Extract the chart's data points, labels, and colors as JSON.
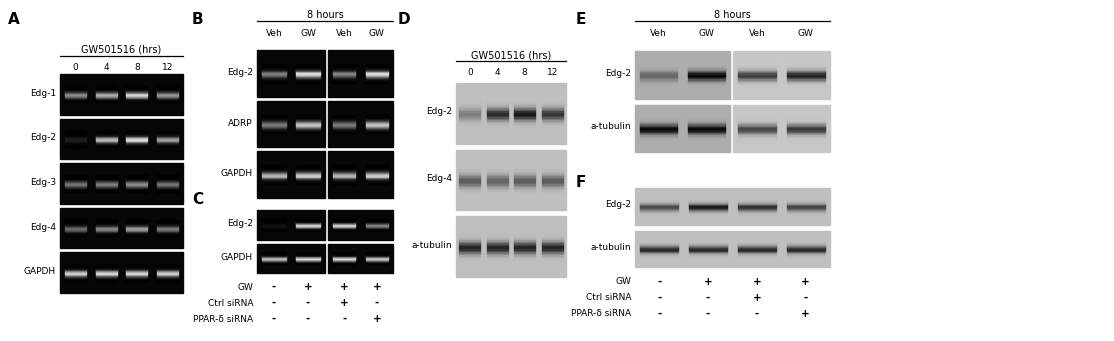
{
  "bg": "#ffffff",
  "panel_A": {
    "label": "A",
    "title": "GW501516 (hrs)",
    "lanes": [
      "0",
      "4",
      "8",
      "12"
    ],
    "rows": [
      "Edg-1",
      "Edg-2",
      "Edg-3",
      "Edg-4",
      "GAPDH"
    ],
    "bands": {
      "Edg-1": [
        0.55,
        0.7,
        0.85,
        0.6
      ],
      "Edg-2": [
        0.12,
        0.72,
        0.88,
        0.62
      ],
      "Edg-3": [
        0.48,
        0.52,
        0.58,
        0.48
      ],
      "Edg-4": [
        0.42,
        0.52,
        0.62,
        0.48
      ],
      "GAPDH": [
        0.82,
        0.85,
        0.85,
        0.82
      ]
    }
  },
  "panel_B": {
    "label": "B",
    "title": "8 hours",
    "col_labels": [
      "Veh",
      "GW",
      "Veh",
      "GW"
    ],
    "rows": [
      "Edg-2",
      "ADRP",
      "GAPDH"
    ],
    "bands": {
      "Edg-2": [
        0.5,
        0.88,
        0.52,
        0.88
      ],
      "ADRP": [
        0.48,
        0.78,
        0.48,
        0.78
      ],
      "GAPDH": [
        0.72,
        0.82,
        0.72,
        0.82
      ]
    }
  },
  "panel_C": {
    "label": "C",
    "rows": [
      "Edg-2",
      "GAPDH"
    ],
    "bands": {
      "Edg-2": [
        0.08,
        0.88,
        0.88,
        0.55
      ],
      "GAPDH": [
        0.78,
        0.88,
        0.88,
        0.82
      ]
    },
    "gw_signs": [
      "-",
      "+",
      "+",
      "+"
    ],
    "ctrl_sirna": [
      "-",
      "-",
      "+",
      "-"
    ],
    "ppar_sirna": [
      "-",
      "-",
      "-",
      "+"
    ]
  },
  "panel_D": {
    "label": "D",
    "title": "GW501516 (hrs)",
    "lanes": [
      "0",
      "4",
      "8",
      "12"
    ],
    "rows": [
      "Edg-2",
      "Edg-4",
      "a-tubulin"
    ],
    "bands": {
      "Edg-2": [
        0.35,
        0.78,
        0.88,
        0.72
      ],
      "Edg-4": [
        0.52,
        0.48,
        0.52,
        0.52
      ],
      "a-tubulin": [
        0.82,
        0.82,
        0.82,
        0.82
      ]
    }
  },
  "panel_E": {
    "label": "E",
    "title": "8 hours",
    "col_labels": [
      "Veh",
      "GW",
      "Veh",
      "GW"
    ],
    "rows": [
      "Edg-2",
      "a-tubulin"
    ],
    "bands_g1": {
      "Edg-2": [
        0.38,
        0.88
      ],
      "a-tubulin": [
        0.88,
        0.88
      ]
    },
    "bands_g2": {
      "Edg-2": [
        0.72,
        0.88
      ],
      "a-tubulin": [
        0.68,
        0.75
      ]
    }
  },
  "panel_F": {
    "label": "F",
    "rows": [
      "Edg-2",
      "a-tubulin"
    ],
    "bands": {
      "Edg-2": [
        0.62,
        0.88,
        0.75,
        0.65
      ],
      "a-tubulin": [
        0.8,
        0.8,
        0.8,
        0.8
      ]
    },
    "gw_signs": [
      "-",
      "+",
      "+",
      "+"
    ],
    "ctrl_sirna": [
      "-",
      "-",
      "+",
      "-"
    ],
    "ppar_sirna": [
      "-",
      "-",
      "-",
      "+"
    ]
  }
}
